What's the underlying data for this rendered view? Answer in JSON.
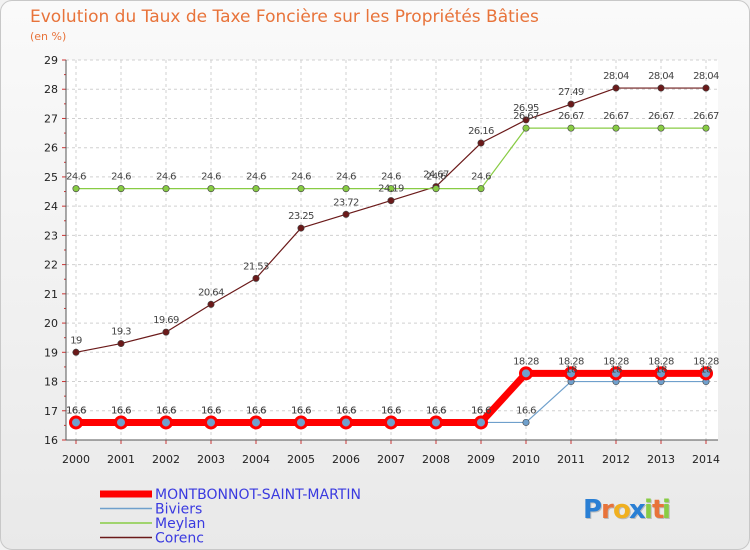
{
  "chart_data": {
    "type": "line",
    "title": "Evolution du Taux de Taxe Foncière sur les Propriétés Bâties",
    "subtitle": "(en %)",
    "xlabel": "",
    "ylabel": "",
    "x": [
      "2000",
      "2001",
      "2002",
      "2003",
      "2004",
      "2005",
      "2006",
      "2007",
      "2008",
      "2009",
      "2010",
      "2011",
      "2012",
      "2013",
      "2014"
    ],
    "ylim": [
      16,
      29
    ],
    "yticks": [
      "16",
      "17",
      "18",
      "19",
      "20",
      "21",
      "22",
      "23",
      "24",
      "25",
      "26",
      "27",
      "28",
      "29"
    ],
    "grid": true,
    "legend_position": "bottom-left",
    "series": [
      {
        "name": "Corenc",
        "color": "#6b1a1a",
        "values": [
          19,
          19.3,
          19.69,
          20.64,
          21.53,
          23.25,
          23.72,
          24.19,
          24.67,
          26.16,
          26.95,
          27.49,
          28.04,
          28.04,
          28.04
        ],
        "labels": [
          "19",
          "19.3",
          "19.69",
          "20.64",
          "21.53",
          "23.25",
          "23.72",
          "24.19",
          "24.67",
          "26.16",
          "26.95",
          "27.49",
          "28.04",
          "28.04",
          "28.04"
        ]
      },
      {
        "name": "Meylan",
        "color": "#88cc44",
        "values": [
          24.6,
          24.6,
          24.6,
          24.6,
          24.6,
          24.6,
          24.6,
          24.6,
          24.6,
          24.6,
          26.67,
          26.67,
          26.67,
          26.67,
          26.67
        ],
        "labels": [
          "24.6",
          "24.6",
          "24.6",
          "24.6",
          "24.6",
          "24.6",
          "24.6",
          "24.6",
          "24.6",
          "24.6",
          "26.67",
          "26.67",
          "26.67",
          "26.67",
          "26.67"
        ]
      },
      {
        "name": "Biviers",
        "color": "#6fa0cc",
        "values": [
          16.6,
          16.6,
          16.6,
          16.6,
          16.6,
          16.6,
          16.6,
          16.6,
          16.6,
          16.6,
          16.6,
          18,
          18,
          18,
          18
        ],
        "labels": [
          "16.6",
          "16.6",
          "16.6",
          "16.6",
          "16.6",
          "16.6",
          "16.6",
          "16.6",
          "16.6",
          "16.6",
          "16.6",
          "18",
          "18",
          "18",
          "18"
        ]
      },
      {
        "name": "MONTBONNOT-SAINT-MARTIN",
        "color": "#ff0000",
        "values": [
          16.6,
          16.6,
          16.6,
          16.6,
          16.6,
          16.6,
          16.6,
          16.6,
          16.6,
          16.6,
          18.28,
          18.28,
          18.28,
          18.28,
          18.28
        ],
        "labels": [
          "16.6",
          "16.6",
          "16.6",
          "16.6",
          "16.6",
          "16.6",
          "16.6",
          "16.6",
          "16.6",
          "16.6",
          "18.28",
          "18.28",
          "18.28",
          "18.28",
          "18.28"
        ]
      }
    ],
    "legend": [
      "MONTBONNOT-SAINT-MARTIN",
      "Biviers",
      "Meylan",
      "Corenc"
    ]
  },
  "brand": {
    "letters": [
      "P",
      "r",
      "o",
      "x",
      "i",
      "t",
      "i"
    ],
    "colors": [
      "#2a7fd4",
      "#e8733a",
      "#f0b020",
      "#2a7fd4",
      "#88cc44",
      "#e8733a",
      "#88cc44"
    ]
  }
}
